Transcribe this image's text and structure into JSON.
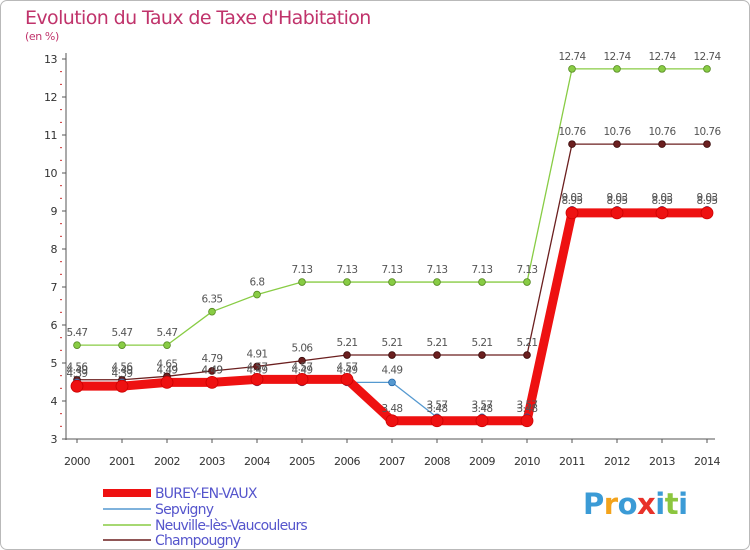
{
  "title": "Evolution du Taux de Taxe d'Habitation",
  "unit_label": "(en %)",
  "logo": {
    "text": "Proxiti",
    "letters": [
      "P",
      "r",
      "o",
      "x",
      "i",
      "t",
      "i"
    ],
    "colors": [
      "#3b9bd6",
      "#f3a31b",
      "#3b9bd6",
      "#e8322a",
      "#3b9bd6",
      "#8cc63f",
      "#3b9bd6"
    ]
  },
  "chart_data": {
    "type": "line",
    "title": "Evolution du Taux de Taxe d'Habitation",
    "ylabel": "(en %)",
    "xlabel": "",
    "x": [
      2000,
      2001,
      2002,
      2003,
      2004,
      2005,
      2006,
      2007,
      2008,
      2009,
      2010,
      2011,
      2012,
      2013,
      2014
    ],
    "ylim": [
      3,
      13
    ],
    "yticks": [
      3,
      4,
      5,
      6,
      7,
      8,
      9,
      10,
      11,
      12,
      13
    ],
    "grid": false,
    "legend": "bottom",
    "series": [
      {
        "name": "BUREY-EN-VAUX",
        "color": "#ee1111",
        "values": [
          4.39,
          4.39,
          4.49,
          4.49,
          4.57,
          4.57,
          4.57,
          3.48,
          3.48,
          3.48,
          3.48,
          8.95,
          8.95,
          8.95,
          8.95
        ],
        "labels": [
          "4.39",
          "4.39",
          "4.49",
          "4.49",
          "4.57",
          "4.57",
          "4.57",
          "3.48",
          "3.48",
          "3.48",
          "3.48",
          "8.95",
          "8.95",
          "8.95",
          "8.95"
        ]
      },
      {
        "name": "Sepvigny",
        "color": "#5599d0",
        "values": [
          4.49,
          4.49,
          4.49,
          4.49,
          4.49,
          4.49,
          4.49,
          4.49,
          3.57,
          3.57,
          3.57,
          9.03,
          9.03,
          9.03,
          9.03
        ],
        "labels": [
          "4.49",
          "4.49",
          "4.49",
          "4.49",
          "4.49",
          "4.49",
          "4.49",
          "4.49",
          "3.57",
          "3.57",
          "3.57",
          "9.03",
          "9.03",
          "9.03",
          "9.03"
        ]
      },
      {
        "name": "Neuville-lès-Vaucouleurs",
        "color": "#88cc44",
        "values": [
          5.47,
          5.47,
          5.47,
          6.35,
          6.8,
          7.13,
          7.13,
          7.13,
          7.13,
          7.13,
          7.13,
          12.74,
          12.74,
          12.74,
          12.74
        ],
        "labels": [
          "5.47",
          "5.47",
          "5.47",
          "6.35",
          "6.8",
          "7.13",
          "7.13",
          "7.13",
          "7.13",
          "7.13",
          "7.13",
          "12.74",
          "12.74",
          "12.74",
          "12.74"
        ]
      },
      {
        "name": "Champougny",
        "color": "#6b1f1f",
        "values": [
          4.56,
          4.56,
          4.65,
          4.79,
          4.91,
          5.06,
          5.21,
          5.21,
          5.21,
          5.21,
          5.21,
          10.76,
          10.76,
          10.76,
          10.76
        ],
        "labels": [
          "4.56",
          "4.56",
          "4.65",
          "4.79",
          "4.91",
          "5.06",
          "5.21",
          "5.21",
          "5.21",
          "5.21",
          "5.21",
          "10.76",
          "10.76",
          "10.76",
          "10.76"
        ]
      }
    ]
  }
}
